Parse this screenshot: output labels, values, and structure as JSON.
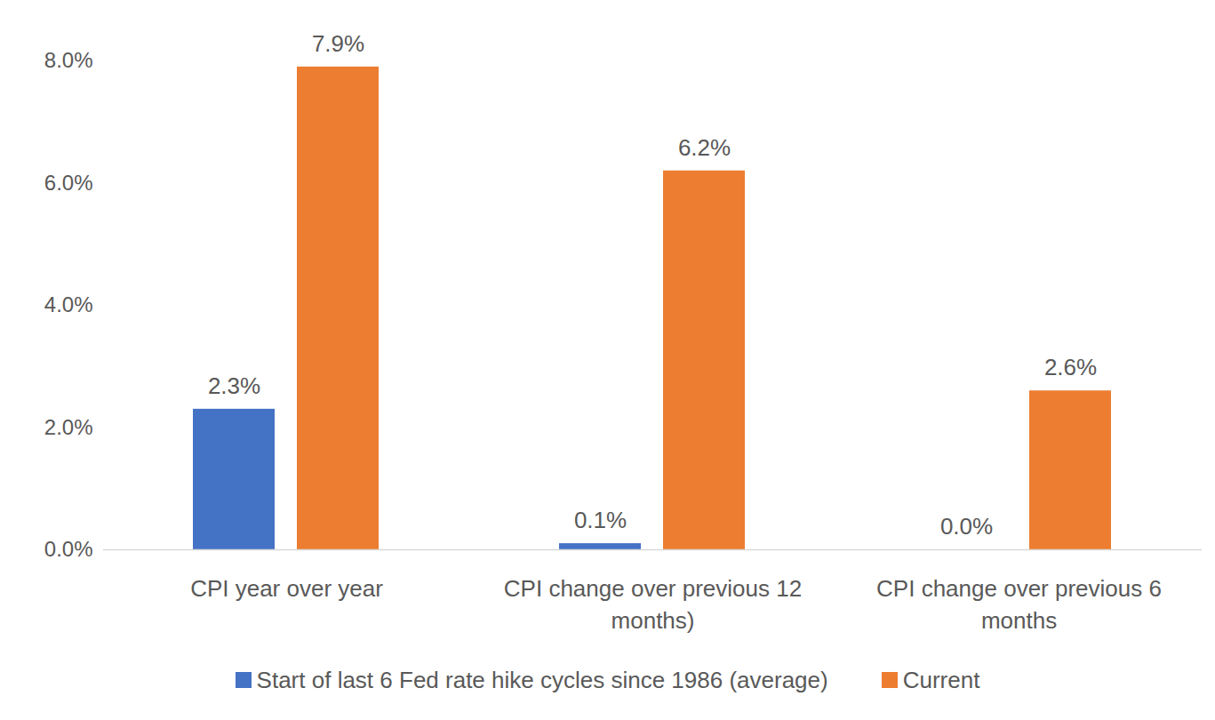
{
  "chart_data": {
    "type": "bar",
    "categories": [
      "CPI year over year",
      "CPI change over previous 12 months)",
      "CPI change over previous 6 months"
    ],
    "series": [
      {
        "name": "Start of last 6 Fed rate hike cycles since 1986 (average)",
        "color": "#4472c4",
        "values": [
          2.3,
          0.1,
          0.0
        ],
        "value_labels": [
          "2.3%",
          "0.1%",
          "0.0%"
        ]
      },
      {
        "name": "Current",
        "color": "#ed7d31",
        "values": [
          7.9,
          6.2,
          2.6
        ],
        "value_labels": [
          "7.9%",
          "6.2%",
          "2.6%"
        ]
      }
    ],
    "ylim": [
      0,
      8
    ],
    "yticks": [
      {
        "value": 0,
        "label": "0.0%"
      },
      {
        "value": 2,
        "label": "2.0%"
      },
      {
        "value": 4,
        "label": "4.0%"
      },
      {
        "value": 6,
        "label": "6.0%"
      },
      {
        "value": 8,
        "label": "8.0%"
      }
    ],
    "grid": false,
    "data_labels": true,
    "legend": "bottom"
  }
}
